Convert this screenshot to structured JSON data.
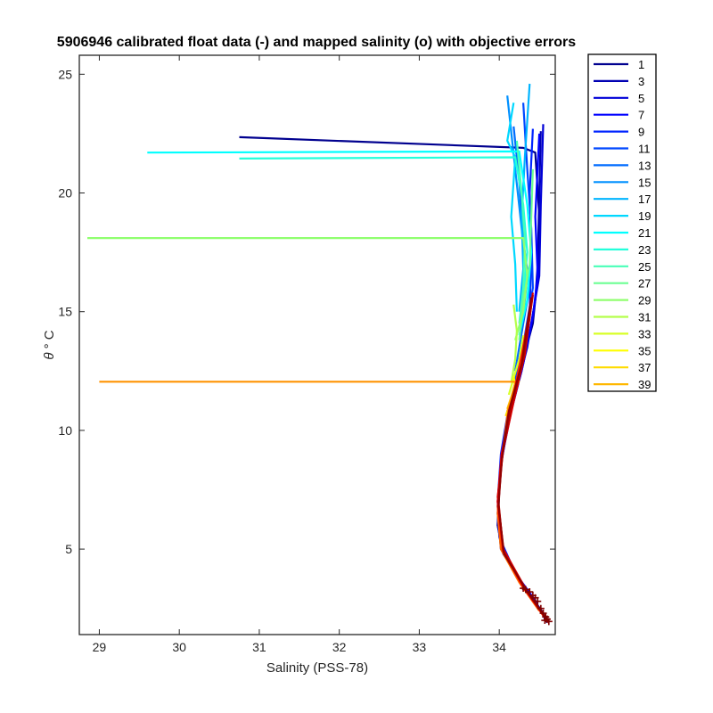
{
  "chart_data": {
    "type": "line",
    "title": "5906946 calibrated float data (-) and mapped salinity (o) with objective errors",
    "xlabel": "Salinity (PSS-78)",
    "ylabel_symbol": "θ",
    "ylabel_unit": "° C",
    "xlim": [
      28.75,
      34.7
    ],
    "ylim": [
      1.4,
      25.8
    ],
    "xticks": [
      29,
      30,
      31,
      32,
      33,
      34
    ],
    "yticks": [
      5,
      10,
      15,
      20,
      25
    ],
    "legend_placement": "outside-right",
    "series": [
      {
        "name": "1",
        "color": "#00008F",
        "points": [
          [
            30.75,
            22.35
          ],
          [
            34.3,
            21.9
          ],
          [
            34.45,
            21.7
          ],
          [
            34.5,
            19.0
          ],
          [
            34.48,
            16.5
          ],
          [
            34.42,
            14.5
          ],
          [
            34.3,
            13.0
          ],
          [
            34.18,
            11.5
          ],
          [
            34.05,
            9.5
          ],
          [
            34.0,
            7.5
          ],
          [
            33.98,
            6.0
          ],
          [
            34.05,
            4.8
          ],
          [
            34.3,
            3.5
          ],
          [
            34.5,
            2.5
          ],
          [
            34.6,
            1.9
          ]
        ]
      },
      {
        "name": "3",
        "color": "#0000B3",
        "points": [
          [
            34.52,
            22.6
          ],
          [
            34.5,
            20.0
          ],
          [
            34.48,
            17.0
          ],
          [
            34.45,
            15.5
          ],
          [
            34.35,
            13.5
          ],
          [
            34.2,
            11.5
          ],
          [
            34.05,
            9.5
          ],
          [
            34.0,
            7.5
          ],
          [
            33.98,
            6.0
          ],
          [
            34.05,
            4.8
          ],
          [
            34.3,
            3.5
          ],
          [
            34.55,
            2.3
          ]
        ]
      },
      {
        "name": "5",
        "color": "#0000D7",
        "points": [
          [
            34.55,
            22.9
          ],
          [
            34.52,
            19.5
          ],
          [
            34.5,
            16.5
          ],
          [
            34.4,
            14.5
          ],
          [
            34.28,
            12.5
          ],
          [
            34.12,
            10.5
          ],
          [
            34.02,
            8.5
          ],
          [
            33.98,
            6.5
          ],
          [
            34.02,
            5.0
          ],
          [
            34.25,
            3.7
          ],
          [
            34.5,
            2.5
          ]
        ]
      },
      {
        "name": "7",
        "color": "#0000FF",
        "points": [
          [
            34.5,
            22.5
          ],
          [
            34.45,
            19.0
          ],
          [
            34.48,
            16.5
          ],
          [
            34.42,
            14.8
          ],
          [
            34.3,
            12.8
          ],
          [
            34.15,
            10.8
          ],
          [
            34.03,
            8.8
          ],
          [
            33.98,
            6.8
          ],
          [
            34.02,
            5.2
          ],
          [
            34.22,
            3.9
          ],
          [
            34.48,
            2.7
          ]
        ]
      },
      {
        "name": "9",
        "color": "#0024FF",
        "points": [
          [
            34.42,
            22.7
          ],
          [
            34.38,
            20.0
          ],
          [
            34.4,
            17.5
          ],
          [
            34.38,
            15.0
          ],
          [
            34.28,
            13.0
          ],
          [
            34.12,
            11.0
          ],
          [
            34.02,
            9.0
          ],
          [
            33.98,
            7.0
          ],
          [
            34.0,
            5.5
          ],
          [
            34.2,
            4.0
          ]
        ]
      },
      {
        "name": "11",
        "color": "#0048FF",
        "points": [
          [
            34.3,
            23.8
          ],
          [
            34.35,
            21.0
          ],
          [
            34.4,
            18.5
          ],
          [
            34.42,
            16.0
          ],
          [
            34.32,
            14.0
          ],
          [
            34.18,
            12.0
          ]
        ]
      },
      {
        "name": "13",
        "color": "#006CFF",
        "points": [
          [
            34.18,
            22.8
          ],
          [
            34.25,
            20.5
          ],
          [
            34.3,
            18.0
          ],
          [
            34.38,
            16.0
          ],
          [
            34.3,
            14.5
          ],
          [
            34.2,
            12.5
          ]
        ]
      },
      {
        "name": "15",
        "color": "#0090FF",
        "points": [
          [
            34.1,
            24.1
          ],
          [
            34.2,
            21.0
          ],
          [
            34.28,
            18.5
          ],
          [
            34.35,
            16.5
          ],
          [
            34.3,
            14.8
          ]
        ]
      },
      {
        "name": "17",
        "color": "#00B4FF",
        "points": [
          [
            34.38,
            24.6
          ],
          [
            34.32,
            21.5
          ],
          [
            34.28,
            19.0
          ],
          [
            34.3,
            16.8
          ],
          [
            34.25,
            15.0
          ]
        ]
      },
      {
        "name": "19",
        "color": "#00D8FF",
        "points": [
          [
            34.18,
            23.8
          ],
          [
            34.1,
            22.2
          ],
          [
            34.2,
            21.5
          ],
          [
            34.15,
            19.0
          ],
          [
            34.2,
            17.0
          ],
          [
            34.22,
            15.0
          ]
        ]
      },
      {
        "name": "21",
        "color": "#00FFFF",
        "points": [
          [
            29.6,
            21.7
          ],
          [
            34.25,
            21.75
          ],
          [
            34.35,
            19.5
          ],
          [
            34.4,
            17.5
          ],
          [
            34.35,
            15.5
          ],
          [
            34.25,
            14.0
          ]
        ]
      },
      {
        "name": "23",
        "color": "#24FFDB",
        "points": [
          [
            30.75,
            21.45
          ],
          [
            34.2,
            21.5
          ],
          [
            34.3,
            19.5
          ],
          [
            34.35,
            17.5
          ],
          [
            34.3,
            15.5
          ]
        ]
      },
      {
        "name": "25",
        "color": "#48FFB7",
        "points": [
          [
            34.22,
            22.2
          ],
          [
            34.28,
            20.0
          ],
          [
            34.32,
            18.0
          ],
          [
            34.3,
            16.0
          ],
          [
            34.25,
            14.5
          ]
        ]
      },
      {
        "name": "27",
        "color": "#6CFF93",
        "points": [
          [
            34.42,
            21.0
          ],
          [
            34.4,
            19.0
          ],
          [
            34.38,
            17.0
          ],
          [
            34.3,
            15.5
          ],
          [
            34.25,
            13.8
          ]
        ]
      },
      {
        "name": "29",
        "color": "#90FF6F",
        "points": [
          [
            28.85,
            18.1
          ],
          [
            34.3,
            18.1
          ],
          [
            34.35,
            16.5
          ],
          [
            34.3,
            15.0
          ],
          [
            34.2,
            13.8
          ]
        ]
      },
      {
        "name": "31",
        "color": "#B4FF4B",
        "points": [
          [
            34.18,
            15.3
          ],
          [
            34.22,
            14.2
          ],
          [
            34.2,
            13.0
          ],
          [
            34.15,
            12.0
          ]
        ]
      },
      {
        "name": "33",
        "color": "#D8FF27",
        "points": [
          [
            34.3,
            14.0
          ],
          [
            34.25,
            13.0
          ],
          [
            34.18,
            12.2
          ],
          [
            34.12,
            11.5
          ]
        ]
      },
      {
        "name": "35",
        "color": "#FFFF00",
        "points": [
          [
            34.18,
            12.3
          ],
          [
            34.2,
            11.8
          ],
          [
            34.15,
            11.3
          ],
          [
            34.12,
            10.8
          ]
        ]
      },
      {
        "name": "37",
        "color": "#FFDB00",
        "points": [
          [
            34.25,
            12.1
          ],
          [
            34.18,
            11.5
          ],
          [
            34.12,
            11.0
          ],
          [
            34.08,
            10.6
          ]
        ]
      },
      {
        "name": "39",
        "color": "#FFB700",
        "points": [
          [
            34.2,
            12.0
          ],
          [
            34.15,
            11.4
          ],
          [
            34.1,
            10.9
          ]
        ]
      },
      {
        "name": "",
        "color": "#FF9300",
        "points": [
          [
            29.0,
            12.05
          ],
          [
            34.22,
            12.05
          ],
          [
            34.18,
            11.5
          ],
          [
            34.1,
            10.8
          ]
        ]
      },
      {
        "name": "",
        "color": "#FF6F00",
        "points": [
          [
            34.3,
            13.0
          ],
          [
            34.2,
            11.8
          ],
          [
            34.1,
            10.6
          ],
          [
            34.02,
            8.5
          ],
          [
            33.98,
            6.5
          ],
          [
            34.02,
            5.0
          ],
          [
            34.25,
            3.6
          ],
          [
            34.5,
            2.4
          ]
        ]
      },
      {
        "name": "",
        "color": "#FF4B00",
        "points": [
          [
            34.35,
            14.0
          ],
          [
            34.25,
            12.5
          ],
          [
            34.12,
            10.8
          ],
          [
            34.03,
            8.8
          ],
          [
            33.98,
            6.8
          ],
          [
            34.03,
            5.0
          ],
          [
            34.28,
            3.5
          ],
          [
            34.55,
            2.2
          ]
        ]
      },
      {
        "name": "",
        "color": "#FF2700",
        "points": [
          [
            34.38,
            15.0
          ],
          [
            34.28,
            13.2
          ],
          [
            34.15,
            11.0
          ],
          [
            34.03,
            9.0
          ],
          [
            33.98,
            7.0
          ],
          [
            34.05,
            4.9
          ],
          [
            34.3,
            3.4
          ],
          [
            34.58,
            2.1
          ]
        ]
      },
      {
        "name": "",
        "color": "#FF0000",
        "points": [
          [
            34.4,
            15.5
          ],
          [
            34.3,
            13.0
          ],
          [
            34.15,
            11.0
          ],
          [
            34.03,
            9.0
          ],
          [
            33.98,
            7.0
          ],
          [
            34.05,
            4.9
          ],
          [
            34.32,
            3.3
          ],
          [
            34.6,
            2.0
          ]
        ]
      },
      {
        "name": "",
        "color": "#DB0000",
        "points": [
          [
            34.42,
            15.8
          ],
          [
            34.32,
            13.2
          ],
          [
            34.18,
            11.2
          ],
          [
            34.05,
            9.2
          ],
          [
            33.98,
            7.2
          ],
          [
            34.05,
            5.0
          ],
          [
            34.35,
            3.2
          ],
          [
            34.62,
            1.9
          ]
        ]
      },
      {
        "name": "",
        "color": "#B70000",
        "points": [
          [
            34.42,
            15.7
          ],
          [
            34.3,
            13.0
          ],
          [
            34.15,
            11.0
          ],
          [
            34.04,
            9.0
          ],
          [
            33.99,
            7.0
          ],
          [
            34.05,
            4.9
          ],
          [
            34.33,
            3.3
          ],
          [
            34.6,
            2.0
          ]
        ]
      },
      {
        "name": "",
        "color": "#930000",
        "points": [
          [
            34.4,
            15.6
          ],
          [
            34.28,
            12.8
          ],
          [
            34.12,
            10.8
          ],
          [
            34.03,
            8.8
          ],
          [
            33.99,
            6.8
          ],
          [
            34.06,
            4.8
          ],
          [
            34.35,
            3.2
          ],
          [
            34.62,
            1.95
          ]
        ]
      }
    ],
    "mapped_markers": {
      "color": "#800000",
      "points": [
        [
          34.3,
          3.35
        ],
        [
          34.33,
          3.3
        ],
        [
          34.38,
          3.2
        ],
        [
          34.42,
          3.05
        ],
        [
          34.45,
          2.95
        ],
        [
          34.48,
          2.8
        ],
        [
          34.52,
          2.5
        ],
        [
          34.55,
          2.3
        ],
        [
          34.58,
          2.15
        ],
        [
          34.6,
          2.05
        ],
        [
          34.62,
          1.95
        ],
        [
          34.57,
          2.0
        ]
      ]
    },
    "legend": [
      "1",
      "3",
      "5",
      "7",
      "9",
      "11",
      "13",
      "15",
      "17",
      "19",
      "21",
      "23",
      "25",
      "27",
      "29",
      "31",
      "33",
      "35",
      "37",
      "39"
    ],
    "legend_colors": [
      "#00008F",
      "#0000B3",
      "#0000D7",
      "#0000FF",
      "#0024FF",
      "#0048FF",
      "#006CFF",
      "#0090FF",
      "#00B4FF",
      "#00D8FF",
      "#00FFFF",
      "#24FFDB",
      "#48FFB7",
      "#6CFF93",
      "#90FF6F",
      "#B4FF4B",
      "#D8FF27",
      "#FFFF00",
      "#FFDB00",
      "#FFB700"
    ]
  }
}
